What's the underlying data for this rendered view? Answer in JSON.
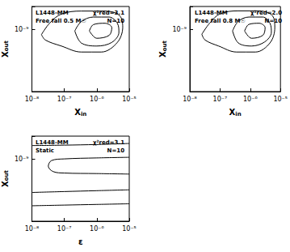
{
  "chart_data": [
    {
      "type": "line",
      "log": true,
      "grid": false,
      "color": "#000000",
      "annotations": [
        "L1448-MM",
        "Free fall 0.5 M☉",
        "χ²red=3.1",
        "N=10"
      ],
      "xlabel": "Xin",
      "ylabel": "Xout",
      "xlim": [
        1e-08,
        1e-05
      ],
      "xticks": [
        {
          "value": 1e-08,
          "label": "10⁻⁸"
        },
        {
          "value": 1e-07,
          "label": "10⁻⁷"
        },
        {
          "value": 1e-06,
          "label": "10⁻⁶"
        },
        {
          "value": 1e-05,
          "label": "10⁻⁵"
        }
      ],
      "ylim": [
        1.5e-10,
        2e-09
      ],
      "yticks": [
        {
          "value": 1e-09,
          "label": "10⁻⁹"
        }
      ],
      "series": [
        {
          "values": [
            [
              1.97e-08,
              8.5e-10
            ],
            [
              3.5e-08,
              1.2e-09
            ],
            [
              8.1e-08,
              1.59e-09
            ],
            [
              3.3e-07,
              1.74e-09
            ],
            [
              1.8e-06,
              1.74e-09
            ],
            [
              5e-06,
              1.52e-09
            ],
            [
              6.3e-06,
              1.07e-09
            ],
            [
              4.3e-06,
              6.7e-10
            ],
            [
              1.4e-06,
              5e-10
            ],
            [
              3.3e-07,
              5e-10
            ],
            [
              8.1e-08,
              6e-10
            ],
            [
              2.6e-08,
              7.2e-10
            ],
            [
              1.97e-08,
              8.5e-10
            ]
          ]
        },
        {
          "values": [
            [
              2.1e-07,
              9.5e-10
            ],
            [
              3.3e-07,
              1.26e-09
            ],
            [
              7.8e-07,
              1.45e-09
            ],
            [
              2.4e-06,
              1.45e-09
            ],
            [
              4.3e-06,
              1.2e-09
            ],
            [
              4.8e-06,
              9.1e-10
            ],
            [
              2.9e-06,
              6.7e-10
            ],
            [
              1e-06,
              6e-10
            ],
            [
              3.3e-07,
              6.6e-10
            ],
            [
              2.1e-07,
              9.5e-10
            ]
          ]
        },
        {
          "values": [
            [
              5.9e-07,
              9.5e-10
            ],
            [
              7.8e-07,
              1.15e-09
            ],
            [
              1.8e-06,
              1.2e-09
            ],
            [
              2.9e-06,
              1.05e-09
            ],
            [
              2.4e-06,
              8.3e-10
            ],
            [
              1e-06,
              7.6e-10
            ],
            [
              5.9e-07,
              9.5e-10
            ]
          ]
        }
      ]
    },
    {
      "type": "line",
      "log": true,
      "grid": false,
      "color": "#000000",
      "annotations": [
        "L1448-MM",
        "Free fall 0.8 M☉",
        "χ²red=2.0",
        "N=10"
      ],
      "xlabel": "Xin",
      "ylabel": "Xout",
      "xlim": [
        1e-08,
        1e-05
      ],
      "xticks": [
        {
          "value": 1e-08,
          "label": "10⁻⁸"
        },
        {
          "value": 1e-07,
          "label": "10⁻⁷"
        },
        {
          "value": 1e-06,
          "label": "10⁻⁶"
        },
        {
          "value": 1e-05,
          "label": "10⁻⁵"
        }
      ],
      "ylim": [
        1.5e-10,
        2e-09
      ],
      "yticks": [
        {
          "value": 1e-09,
          "label": "10⁻⁹"
        }
      ],
      "series": [
        {
          "values": [
            [
              2.5e-08,
              8.6e-10
            ],
            [
              4.5e-08,
              1.2e-09
            ],
            [
              1e-07,
              1.6e-09
            ],
            [
              4e-07,
              1.75e-09
            ],
            [
              2e-06,
              1.75e-09
            ],
            [
              5.5e-06,
              1.5e-09
            ],
            [
              6.5e-06,
              1.05e-09
            ],
            [
              4.5e-06,
              6.6e-10
            ],
            [
              1.5e-06,
              5e-10
            ],
            [
              3.5e-07,
              5e-10
            ],
            [
              9e-08,
              6e-10
            ],
            [
              3.2e-08,
              7.2e-10
            ],
            [
              2.5e-08,
              8.6e-10
            ]
          ]
        },
        {
          "values": [
            [
              2.6e-07,
              9.5e-10
            ],
            [
              4e-07,
              1.27e-09
            ],
            [
              9e-07,
              1.45e-09
            ],
            [
              2.6e-06,
              1.45e-09
            ],
            [
              4.5e-06,
              1.2e-09
            ],
            [
              5e-06,
              9.1e-10
            ],
            [
              3e-06,
              6.8e-10
            ],
            [
              1.1e-06,
              6e-10
            ],
            [
              4e-07,
              6.6e-10
            ],
            [
              2.6e-07,
              9.5e-10
            ]
          ]
        },
        {
          "values": [
            [
              6.5e-07,
              9.5e-10
            ],
            [
              9e-07,
              1.16e-09
            ],
            [
              2e-06,
              1.2e-09
            ],
            [
              3.1e-06,
              1.05e-09
            ],
            [
              2.6e-06,
              8.3e-10
            ],
            [
              1.1e-06,
              7.6e-10
            ],
            [
              6.5e-07,
              9.5e-10
            ]
          ]
        }
      ]
    },
    {
      "type": "line",
      "log": true,
      "grid": false,
      "color": "#000000",
      "annotations": [
        "L1448-MM",
        "Static",
        "χ²red=3.1",
        "N=10"
      ],
      "xlabel": "ε",
      "ylabel": "Xout",
      "xlim": [
        1e-08,
        1e-05
      ],
      "xticks": [
        {
          "value": 1e-08,
          "label": "10⁻⁸"
        },
        {
          "value": 1e-07,
          "label": "10⁻⁷"
        },
        {
          "value": 1e-06,
          "label": "10⁻⁶"
        },
        {
          "value": 1e-05,
          "label": "10⁻⁵"
        }
      ],
      "ylim": [
        1.5e-10,
        2e-09
      ],
      "yticks": [
        {
          "value": 1e-09,
          "label": "10⁻⁹"
        }
      ],
      "series": [
        {
          "values": [
            [
              1e-08,
              1.5e-09
            ],
            [
              1e-07,
              1.52e-09
            ],
            [
              1e-06,
              1.55e-09
            ],
            [
              1e-05,
              1.6e-09
            ]
          ]
        },
        {
          "values": [
            [
              1e-05,
              1.05e-09
            ],
            [
              1e-06,
              1.03e-09
            ],
            [
              1e-07,
              1e-09
            ],
            [
              4e-08,
              9.5e-10
            ],
            [
              3.2e-08,
              8e-10
            ],
            [
              4.5e-08,
              6.8e-10
            ],
            [
              1e-07,
              6.5e-10
            ],
            [
              1e-06,
              6.4e-10
            ],
            [
              1e-05,
              6.3e-10
            ]
          ]
        },
        {
          "values": [
            [
              1e-08,
              3.6e-10
            ],
            [
              1e-07,
              3.7e-10
            ],
            [
              1e-06,
              3.8e-10
            ],
            [
              1e-05,
              3.9e-10
            ]
          ]
        },
        {
          "values": [
            [
              1e-08,
              2.4e-10
            ],
            [
              1e-07,
              2.45e-10
            ],
            [
              1e-06,
              2.5e-10
            ],
            [
              1e-05,
              2.55e-10
            ]
          ]
        }
      ]
    }
  ]
}
